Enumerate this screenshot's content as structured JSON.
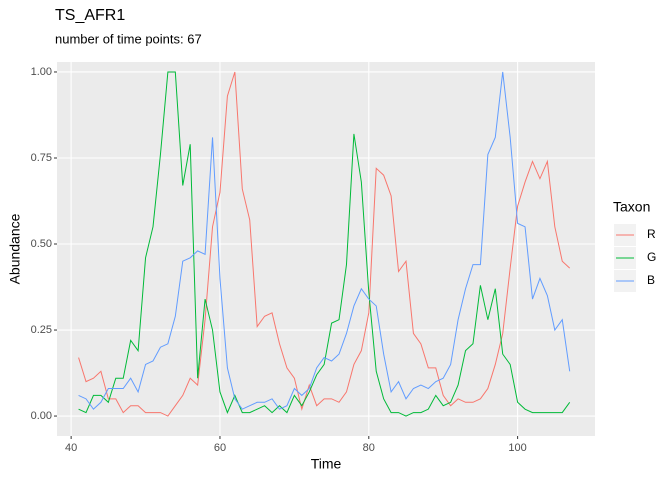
{
  "chart_data": {
    "type": "line",
    "title": "TS_AFR1",
    "subtitle": "number of time points: 67",
    "x_label": "Time",
    "y_label": "Abundance",
    "legend_title": "Taxon",
    "grid": true,
    "xlim": [
      38.1,
      110.4
    ],
    "ylim": [
      -0.058,
      1.029
    ],
    "xticks": [
      40,
      60,
      80,
      100
    ],
    "yticks": [
      {
        "value": 0,
        "label": "0.00"
      },
      {
        "value": 0.25,
        "label": "0.25"
      },
      {
        "value": 0.5,
        "label": "0.50"
      },
      {
        "value": 0.75,
        "label": "0.75"
      },
      {
        "value": 1,
        "label": "1.00"
      }
    ],
    "x": [
      41,
      42,
      43,
      44,
      45,
      46,
      47,
      48,
      49,
      50,
      51,
      52,
      53,
      54,
      55,
      56,
      57,
      58,
      59,
      60,
      61,
      62,
      63,
      64,
      65,
      66,
      67,
      68,
      69,
      70,
      71,
      72,
      73,
      74,
      75,
      76,
      77,
      78,
      79,
      80,
      81,
      82,
      83,
      84,
      85,
      86,
      87,
      88,
      89,
      90,
      91,
      92,
      93,
      94,
      95,
      96,
      97,
      98,
      99,
      100,
      101,
      102,
      103,
      104,
      105,
      106,
      107
    ],
    "series": [
      {
        "name": "R",
        "color": "#F8766D",
        "values": [
          0.17,
          0.1,
          0.11,
          0.13,
          0.05,
          0.05,
          0.01,
          0.03,
          0.03,
          0.01,
          0.01,
          0.01,
          0.0,
          0.03,
          0.06,
          0.11,
          0.09,
          0.28,
          0.55,
          0.65,
          0.93,
          1.0,
          0.66,
          0.57,
          0.26,
          0.29,
          0.3,
          0.21,
          0.14,
          0.11,
          0.02,
          0.09,
          0.03,
          0.05,
          0.05,
          0.04,
          0.07,
          0.15,
          0.19,
          0.3,
          0.72,
          0.7,
          0.64,
          0.42,
          0.45,
          0.24,
          0.21,
          0.14,
          0.14,
          0.06,
          0.03,
          0.05,
          0.04,
          0.04,
          0.05,
          0.08,
          0.15,
          0.24,
          0.43,
          0.61,
          0.68,
          0.74,
          0.69,
          0.74,
          0.55,
          0.45,
          0.43
        ]
      },
      {
        "name": "G",
        "color": "#00BA38",
        "values": [
          0.02,
          0.01,
          0.06,
          0.06,
          0.04,
          0.11,
          0.11,
          0.22,
          0.19,
          0.46,
          0.55,
          0.76,
          1.0,
          1.0,
          0.67,
          0.79,
          0.11,
          0.34,
          0.25,
          0.07,
          0.01,
          0.06,
          0.01,
          0.01,
          0.02,
          0.03,
          0.01,
          0.03,
          0.01,
          0.06,
          0.03,
          0.07,
          0.12,
          0.15,
          0.27,
          0.28,
          0.44,
          0.82,
          0.68,
          0.36,
          0.13,
          0.05,
          0.01,
          0.01,
          0.0,
          0.01,
          0.01,
          0.02,
          0.06,
          0.03,
          0.04,
          0.09,
          0.19,
          0.21,
          0.38,
          0.28,
          0.37,
          0.18,
          0.15,
          0.04,
          0.02,
          0.01,
          0.01,
          0.01,
          0.01,
          0.01,
          0.04
        ]
      },
      {
        "name": "B",
        "color": "#619CFF",
        "values": [
          0.06,
          0.05,
          0.02,
          0.04,
          0.08,
          0.08,
          0.08,
          0.11,
          0.07,
          0.15,
          0.16,
          0.2,
          0.21,
          0.29,
          0.45,
          0.46,
          0.48,
          0.47,
          0.81,
          0.4,
          0.14,
          0.05,
          0.02,
          0.03,
          0.04,
          0.04,
          0.05,
          0.02,
          0.03,
          0.08,
          0.06,
          0.08,
          0.14,
          0.17,
          0.16,
          0.18,
          0.24,
          0.32,
          0.37,
          0.34,
          0.32,
          0.18,
          0.07,
          0.1,
          0.05,
          0.08,
          0.09,
          0.08,
          0.1,
          0.11,
          0.15,
          0.28,
          0.37,
          0.44,
          0.44,
          0.76,
          0.81,
          1.0,
          0.81,
          0.56,
          0.55,
          0.34,
          0.4,
          0.35,
          0.25,
          0.28,
          0.13
        ]
      }
    ]
  }
}
